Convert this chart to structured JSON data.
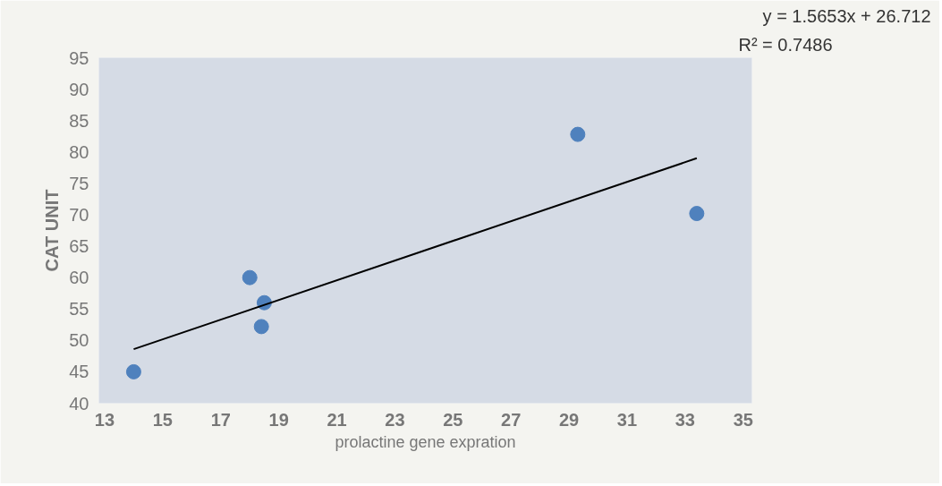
{
  "chart_data": {
    "type": "scatter",
    "xlabel": "prolactine gene expration",
    "ylabel": "CAT UNIT",
    "xlim": [
      12.8,
      35.3
    ],
    "ylim": [
      40,
      95
    ],
    "xticks": [
      13,
      15,
      17,
      19,
      21,
      23,
      25,
      27,
      29,
      31,
      33,
      35
    ],
    "yticks": [
      40,
      45,
      50,
      55,
      60,
      65,
      70,
      75,
      80,
      85,
      90,
      95
    ],
    "grid": false,
    "series": [
      {
        "marker": "circle",
        "color": "#4f81bd",
        "x": [
          14.0,
          18.0,
          18.5,
          18.4,
          29.3,
          33.4
        ],
        "values": [
          45,
          60,
          56,
          52.2,
          82.8,
          70.2
        ]
      },
      {
        "type": "line",
        "marker": "none",
        "color": "#000000",
        "x": [
          14.0,
          33.4
        ],
        "values": [
          48.6,
          79.0
        ]
      }
    ],
    "annotations": [
      "y = 1.5653x + 26.712",
      "R² = 0.7486"
    ]
  }
}
